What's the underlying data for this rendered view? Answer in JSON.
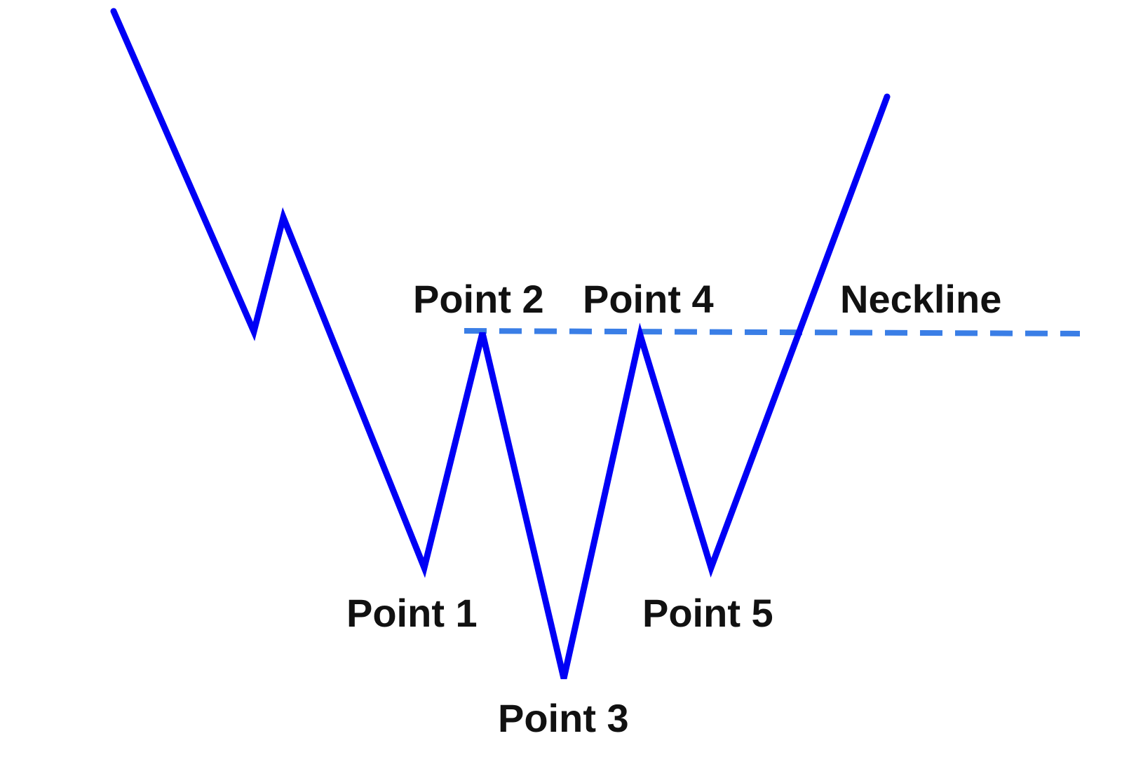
{
  "diagram": {
    "colors": {
      "price_line": "#0000f5",
      "neckline": "#3a7ee6",
      "label_text": "#111111",
      "background": "#ffffff"
    },
    "labels": {
      "point1": "Point 1",
      "point2": "Point 2",
      "point3": "Point 3",
      "point4": "Point 4",
      "point5": "Point 5",
      "neckline": "Neckline"
    }
  }
}
